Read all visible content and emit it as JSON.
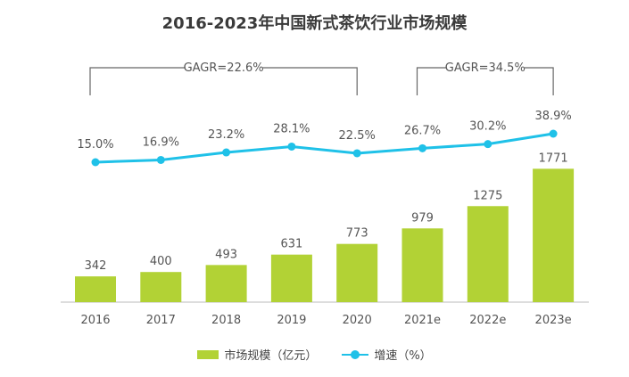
{
  "title": "2016-2023年中国新式茶饮行业市场规模",
  "colors": {
    "bar": "#b2d235",
    "line": "#1fc1e8",
    "text": "#555555",
    "bracket": "#666666"
  },
  "chart_data": {
    "type": "bar+line",
    "categories": [
      "2016",
      "2017",
      "2018",
      "2019",
      "2020",
      "2021e",
      "2022e",
      "2023e"
    ],
    "series": [
      {
        "name": "市场规模（亿元）",
        "type": "bar",
        "values": [
          342,
          400,
          493,
          631,
          773,
          979,
          1275,
          1771
        ]
      },
      {
        "name": "增速（%）",
        "type": "line",
        "values": [
          15.0,
          16.9,
          23.2,
          28.1,
          22.5,
          26.7,
          30.2,
          38.9
        ],
        "labels": [
          "15.0%",
          "16.9%",
          "23.2%",
          "28.1%",
          "22.5%",
          "26.7%",
          "30.2%",
          "38.9%"
        ]
      }
    ],
    "annotations": [
      {
        "text": "GAGR=22.6%",
        "from": "2016",
        "to": "2020"
      },
      {
        "text": "GAGR=34.5%",
        "from": "2021e",
        "to": "2023e"
      }
    ],
    "grid": false,
    "legend": "bottom"
  },
  "legend": {
    "bar_label": "市场规模（亿元）",
    "line_label": "增速（%）"
  }
}
